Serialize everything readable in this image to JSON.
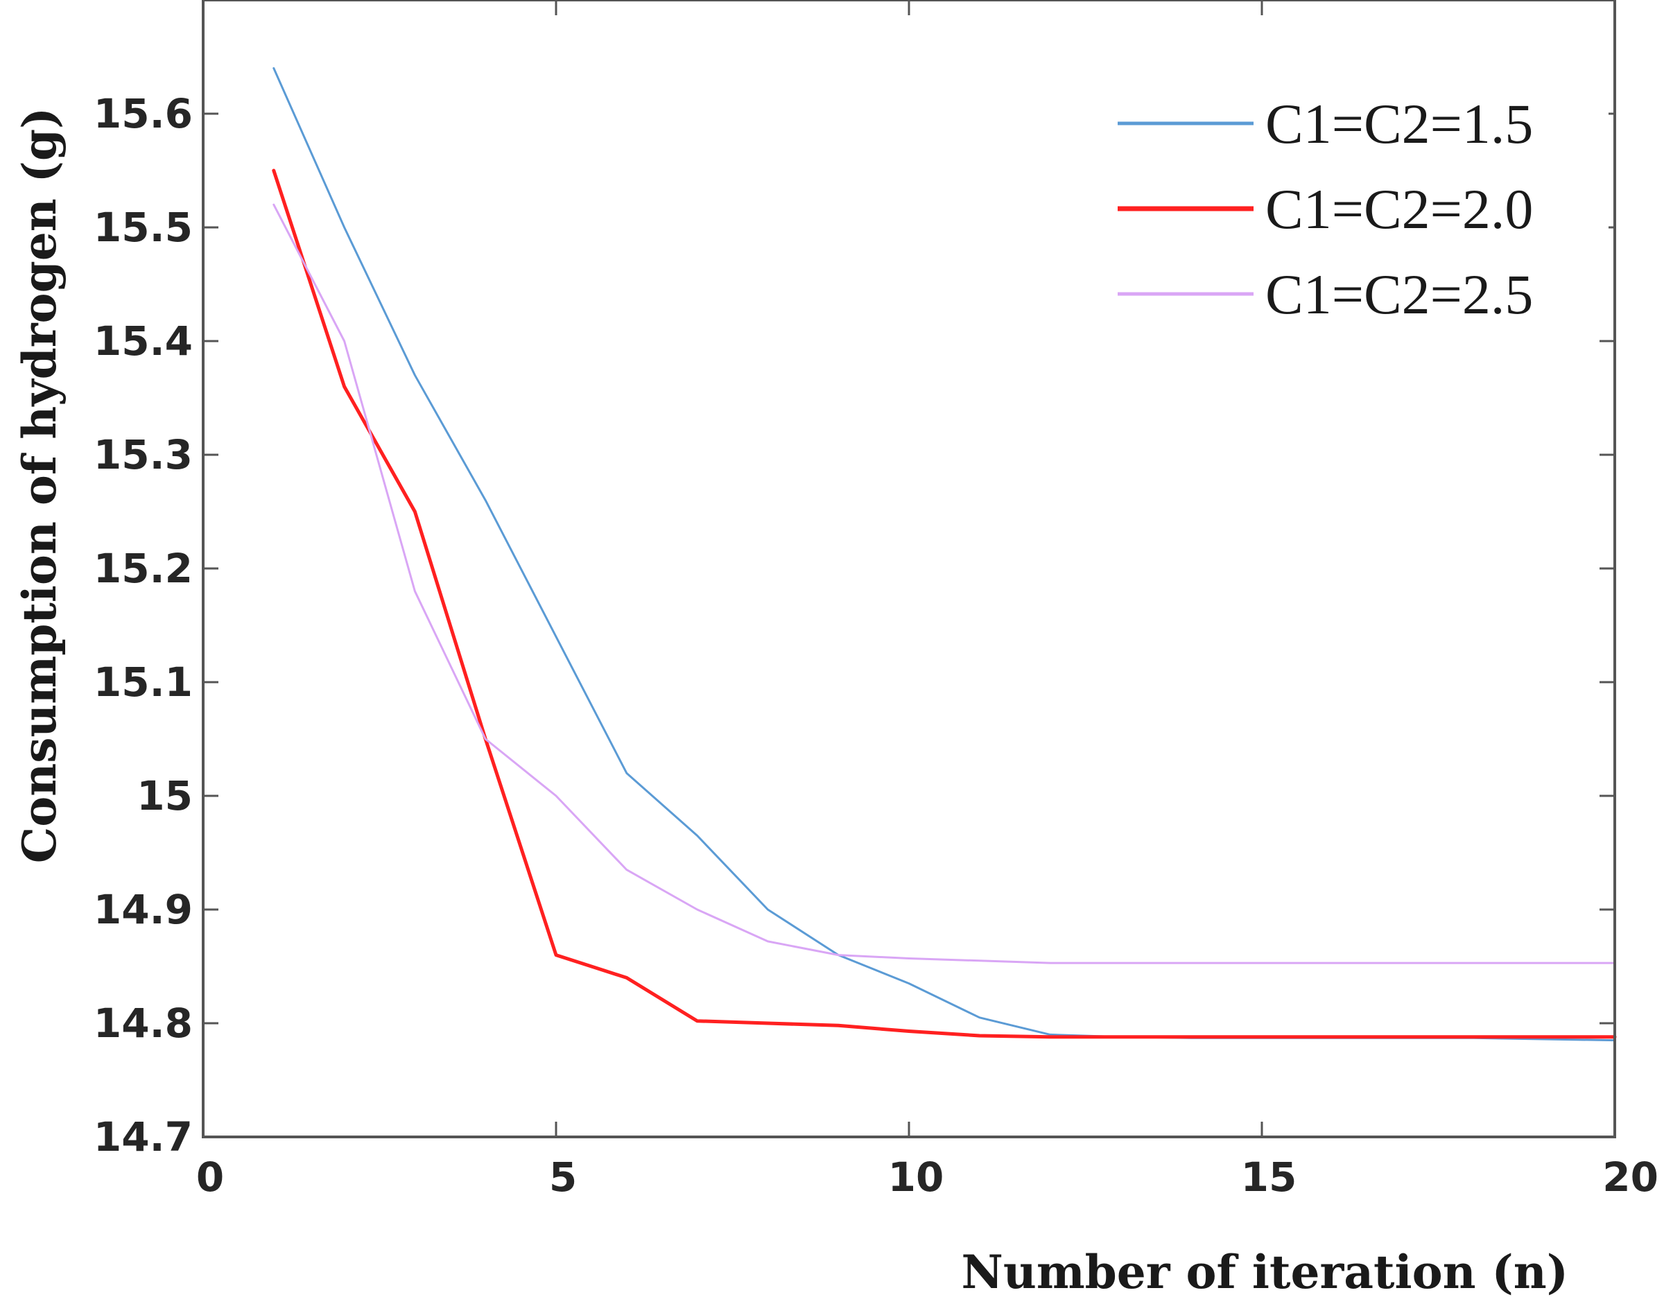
{
  "chart_data": {
    "type": "line",
    "title": "",
    "xlabel": "Number of iteration (n)",
    "ylabel": "Consumption of hydrogen (g)",
    "xlim": [
      0,
      20
    ],
    "ylim": [
      14.7,
      15.7
    ],
    "x_ticks": [
      0,
      5,
      10,
      15,
      20
    ],
    "y_ticks": [
      14.7,
      14.8,
      14.9,
      15,
      15.1,
      15.2,
      15.3,
      15.4,
      15.5,
      15.6
    ],
    "y_tick_labels": [
      "14.7",
      "14.8",
      "14.9",
      "15",
      "15.1",
      "15.2",
      "15.3",
      "15.4",
      "15.5",
      "15.6"
    ],
    "x_tick_labels": [
      "0",
      "5",
      "10",
      "15",
      "20"
    ],
    "legend_position": "top-right",
    "grid": false,
    "x": [
      1,
      2,
      3,
      4,
      5,
      6,
      7,
      8,
      9,
      10,
      11,
      12,
      13,
      14,
      15,
      16,
      17,
      18,
      19,
      20
    ],
    "series": [
      {
        "name": "C1=C2=1.5",
        "color": "#5b9bd5",
        "width": 3,
        "values": [
          15.64,
          15.5,
          15.37,
          15.26,
          15.14,
          15.02,
          14.965,
          14.9,
          14.86,
          14.835,
          14.805,
          14.79,
          14.788,
          14.787,
          14.787,
          14.787,
          14.787,
          14.787,
          14.786,
          14.785
        ]
      },
      {
        "name": "C1=C2=2.0",
        "color": "#ff2020",
        "width": 5,
        "values": [
          15.55,
          15.36,
          15.25,
          15.05,
          14.86,
          14.84,
          14.802,
          14.8,
          14.798,
          14.793,
          14.789,
          14.788,
          14.788,
          14.788,
          14.788,
          14.788,
          14.788,
          14.788,
          14.788,
          14.788
        ]
      },
      {
        "name": "C1=C2=2.5",
        "color": "#d9a6f5",
        "width": 3,
        "values": [
          15.52,
          15.4,
          15.18,
          15.05,
          15.0,
          14.935,
          14.9,
          14.872,
          14.86,
          14.857,
          14.855,
          14.853,
          14.853,
          14.853,
          14.853,
          14.853,
          14.853,
          14.853,
          14.853,
          14.853
        ]
      }
    ]
  }
}
